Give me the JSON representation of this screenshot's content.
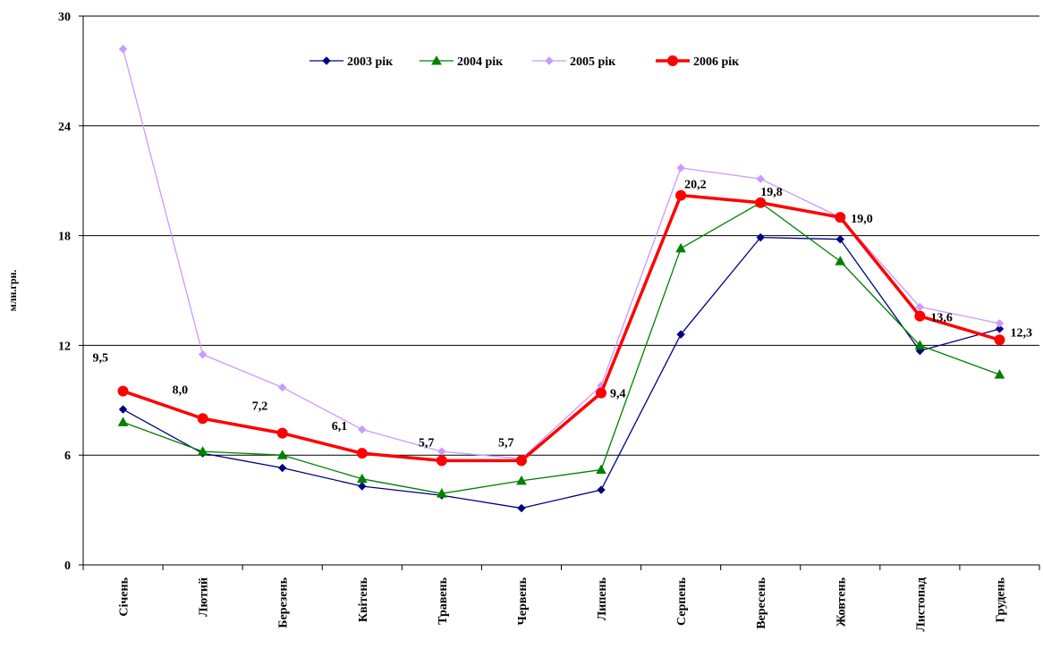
{
  "chart_data": {
    "type": "line",
    "title": "",
    "ylabel": "млн.грн.",
    "xlabel": "",
    "ylim": [
      0,
      30
    ],
    "yticks": [
      0,
      6,
      12,
      18,
      24,
      30
    ],
    "grid": "horizontal",
    "legend_position": "top",
    "categories": [
      "Січень",
      "Лютий",
      "Березень",
      "Квітень",
      "Травень",
      "Червень",
      "Липень",
      "Серпень",
      "Вересень",
      "Жовтень",
      "Листопад",
      "Грудень"
    ],
    "series": [
      {
        "name": "2003 рік",
        "color": "#000080",
        "marker": "diamond",
        "values": [
          8.5,
          6.1,
          5.3,
          4.3,
          3.8,
          3.1,
          4.1,
          12.6,
          17.9,
          17.8,
          11.7,
          12.9
        ]
      },
      {
        "name": "2004 рік",
        "color": "#008000",
        "marker": "triangle",
        "values": [
          7.8,
          6.2,
          6.0,
          4.7,
          3.9,
          4.6,
          5.2,
          17.3,
          19.8,
          16.6,
          12.0,
          10.4
        ]
      },
      {
        "name": "2005 рік",
        "color": "#cc99ff",
        "marker": "diamond",
        "values": [
          28.2,
          11.5,
          9.7,
          7.4,
          6.2,
          5.8,
          9.8,
          21.7,
          21.1,
          19.0,
          14.1,
          13.2
        ]
      },
      {
        "name": "2006 рік",
        "color": "#ff0000",
        "marker": "circle",
        "values": [
          9.5,
          8.0,
          7.2,
          6.1,
          5.7,
          5.7,
          9.4,
          20.2,
          19.8,
          19.0,
          13.6,
          12.3
        ]
      }
    ],
    "data_labels": {
      "series": "2006 рік",
      "labels": [
        "9,5",
        "8,0",
        "7,2",
        "6,1",
        "5,7",
        "5,7",
        "9,4",
        "20,2",
        "19,8",
        "19,0",
        "13,6",
        "12,3"
      ]
    }
  }
}
